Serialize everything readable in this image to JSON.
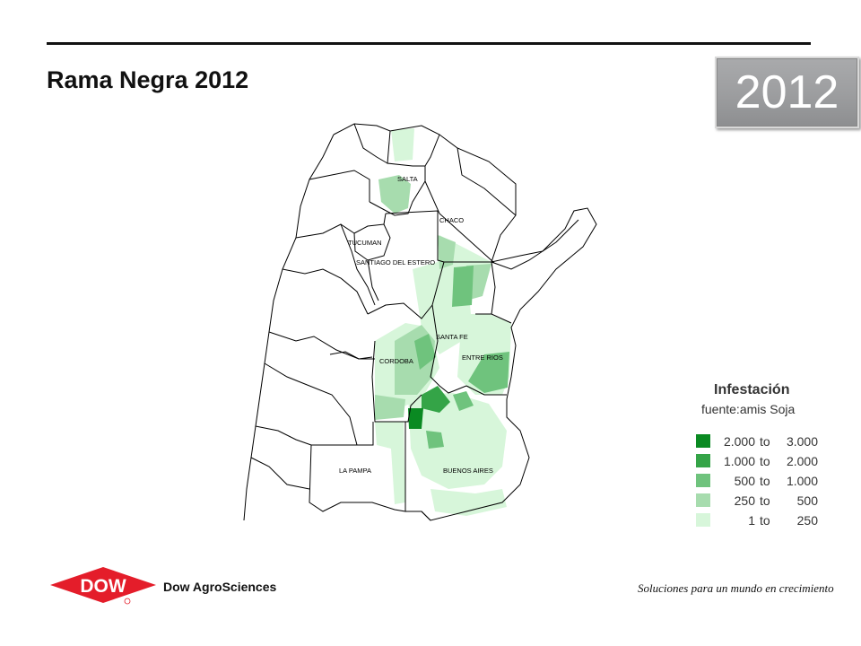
{
  "slide": {
    "title": "Rama Negra 2012",
    "year_badge": "2012"
  },
  "map": {
    "province_labels": {
      "salta": "SALTA",
      "chaco": "CHACO",
      "tucuman": "TUCUMAN",
      "santiago": "SANTIAGO DEL ESTERO",
      "santa_fe": "SANTA FE",
      "cordoba": "CORDOBA",
      "entre_rios": "ENTRE RIOS",
      "la_pampa": "LA PAMPA",
      "buenos_aires": "BUENOS AIRES"
    },
    "colors": {
      "c1": "#0a8a22",
      "c2": "#34a447",
      "c3": "#6fc37d",
      "c4": "#a7dcae",
      "c5": "#d7f6da"
    }
  },
  "legend": {
    "title": "Infestación",
    "subtitle": "fuente:amis Soja",
    "items": [
      {
        "low": "2.000",
        "to": "to",
        "high": "3.000",
        "color": "#0a8a22"
      },
      {
        "low": "1.000",
        "to": "to",
        "high": "2.000",
        "color": "#34a447"
      },
      {
        "low": "500",
        "to": "to",
        "high": "1.000",
        "color": "#6fc37d"
      },
      {
        "low": "250",
        "to": "to",
        "high": "500",
        "color": "#a7dcae"
      },
      {
        "low": "1",
        "to": "to",
        "high": "250",
        "color": "#d7f6da"
      }
    ]
  },
  "footer": {
    "logo_text": "DOW",
    "company": "Dow AgroSciences",
    "tagline": "Soluciones para un mundo en crecimiento"
  }
}
